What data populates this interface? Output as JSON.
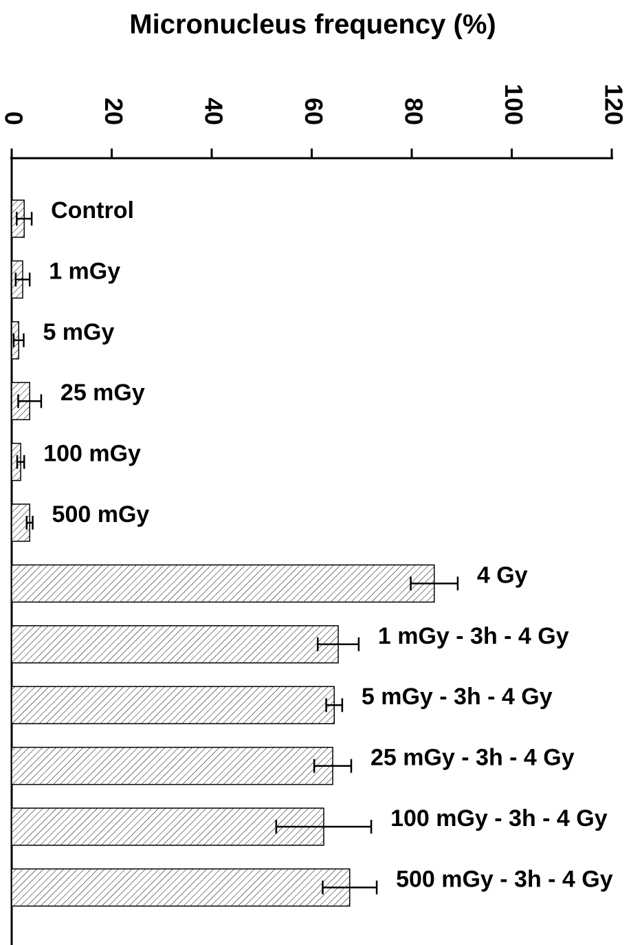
{
  "chart_data": {
    "type": "bar",
    "orientation": "horizontal",
    "title": "Micronucleus frequency (%)",
    "categories": [
      "Control",
      "1 mGy",
      "5 mGy",
      "25 mGy",
      "100 mGy",
      "500 mGy",
      "4 Gy",
      "1 mGy - 3h - 4 Gy",
      "5 mGy - 3h - 4 Gy",
      "25 mGy - 3h - 4 Gy",
      "100 mGy - 3h - 4 Gy",
      "500 mGy - 3h - 4 Gy"
    ],
    "values": [
      2.5,
      2.2,
      1.4,
      3.6,
      1.8,
      3.6,
      84.5,
      65.3,
      64.5,
      64.2,
      62.4,
      67.6
    ],
    "errors": [
      1.5,
      1.4,
      1.0,
      2.3,
      0.7,
      0.6,
      4.7,
      4.1,
      1.6,
      3.7,
      9.5,
      5.4
    ],
    "color": "#000000",
    "xlim": [
      0,
      120
    ],
    "xticks": [
      0,
      20,
      40,
      60,
      80,
      100,
      120
    ]
  }
}
